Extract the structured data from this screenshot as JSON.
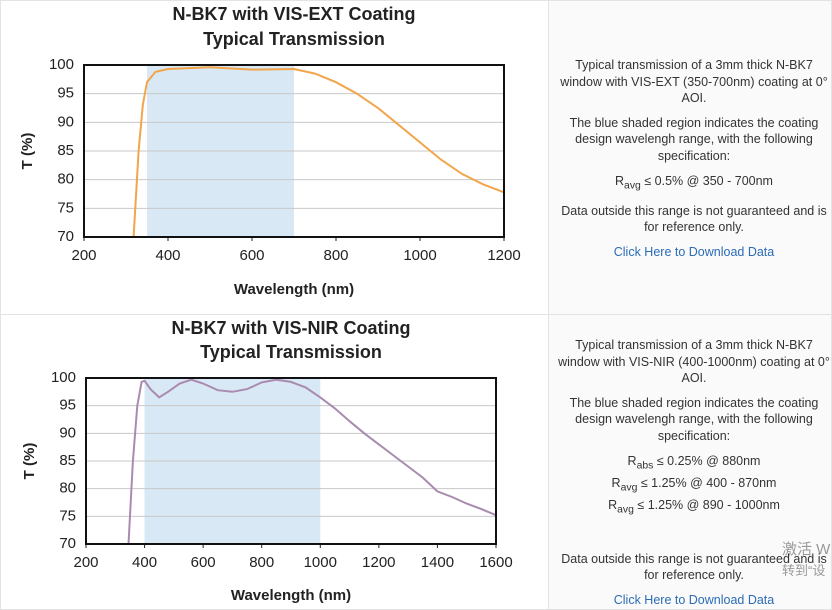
{
  "chart_data": [
    {
      "type": "line",
      "title": [
        "N-BK7 with VIS-EXT Coating",
        "Typical Transmission"
      ],
      "x_label": "Wavelength (nm)",
      "y_label": "T (%)",
      "x": [
        318,
        330,
        340,
        350,
        370,
        400,
        500,
        600,
        700,
        750,
        800,
        850,
        900,
        950,
        1000,
        1050,
        1100,
        1150,
        1200
      ],
      "series": [
        {
          "color": "#f2a54a",
          "values": [
            70,
            85,
            93,
            97,
            98.8,
            99.3,
            99.6,
            99.2,
            99.3,
            98.5,
            97,
            95,
            92.5,
            89.5,
            86.5,
            83.5,
            81,
            79.2,
            77.8
          ]
        }
      ],
      "shaded_region": {
        "range": [
          350,
          700
        ],
        "color": "#d9e8f5"
      },
      "xlim": [
        200,
        1200
      ],
      "xticks": [
        200,
        400,
        600,
        800,
        1000,
        1200
      ],
      "ylim": [
        70,
        100
      ],
      "yticks": [
        70,
        75,
        80,
        85,
        90,
        95,
        100
      ],
      "grid": true
    },
    {
      "type": "line",
      "title": [
        "N-BK7 with VIS-NIR Coating",
        "Typical Transmission"
      ],
      "x_label": "Wavelength (nm)",
      "y_label": "T (%)",
      "x": [
        345,
        360,
        375,
        390,
        400,
        420,
        450,
        480,
        520,
        560,
        600,
        650,
        700,
        750,
        800,
        850,
        900,
        950,
        1000,
        1050,
        1100,
        1150,
        1200,
        1250,
        1300,
        1350,
        1400,
        1450,
        1500,
        1550,
        1600
      ],
      "series": [
        {
          "color": "#a98bb0",
          "values": [
            70,
            85,
            95,
            99.3,
            99.5,
            98,
            96.5,
            97.5,
            99,
            99.7,
            99,
            97.8,
            97.5,
            98,
            99.2,
            99.7,
            99.3,
            98.3,
            96.5,
            94.5,
            92.2,
            90,
            88,
            86,
            84,
            82,
            79.5,
            78.5,
            77.3,
            76.3,
            75.2
          ]
        }
      ],
      "shaded_region": {
        "range": [
          400,
          1000
        ],
        "color": "#d9e8f5"
      },
      "xlim": [
        200,
        1600
      ],
      "xticks": [
        200,
        400,
        600,
        800,
        1000,
        1200,
        1400,
        1600
      ],
      "ylim": [
        70,
        100
      ],
      "yticks": [
        70,
        75,
        80,
        85,
        90,
        95,
        100
      ],
      "grid": true
    }
  ],
  "descriptions": [
    {
      "intro": "Typical transmission of a 3mm thick N-BK7 window with VIS-EXT (350-700nm) coating at 0° AOI.",
      "shaded_note": "The blue shaded region indicates the coating design wavelengh range, with the following specification:",
      "spec": [
        {
          "symbol": "R",
          "sub": "avg",
          "text": "≤ 0.5% @ 350 - 700nm"
        }
      ],
      "disclaimer": "Data outside this range is not guaranteed and is for reference only.",
      "link": "Click Here to Download Data"
    },
    {
      "intro": "Typical transmission of a 3mm thick N-BK7 window with VIS-NIR (400-1000nm) coating at 0° AOI.",
      "shaded_note": "The blue shaded region indicates the coating design wavelengh range, with the following specification:",
      "spec": [
        {
          "symbol": "R",
          "sub": "abs",
          "text": "≤ 0.25% @ 880nm"
        },
        {
          "symbol": "R",
          "sub": "avg",
          "text": "≤ 1.25% @ 400 - 870nm"
        },
        {
          "symbol": "R",
          "sub": "avg",
          "text": "≤ 1.25% @ 890 - 1000nm"
        }
      ],
      "disclaimer": "Data outside this range is not guaranteed and is for reference only.",
      "link": "Click Here to Download Data"
    }
  ],
  "watermark": [
    "激活 W",
    "转到“设"
  ]
}
